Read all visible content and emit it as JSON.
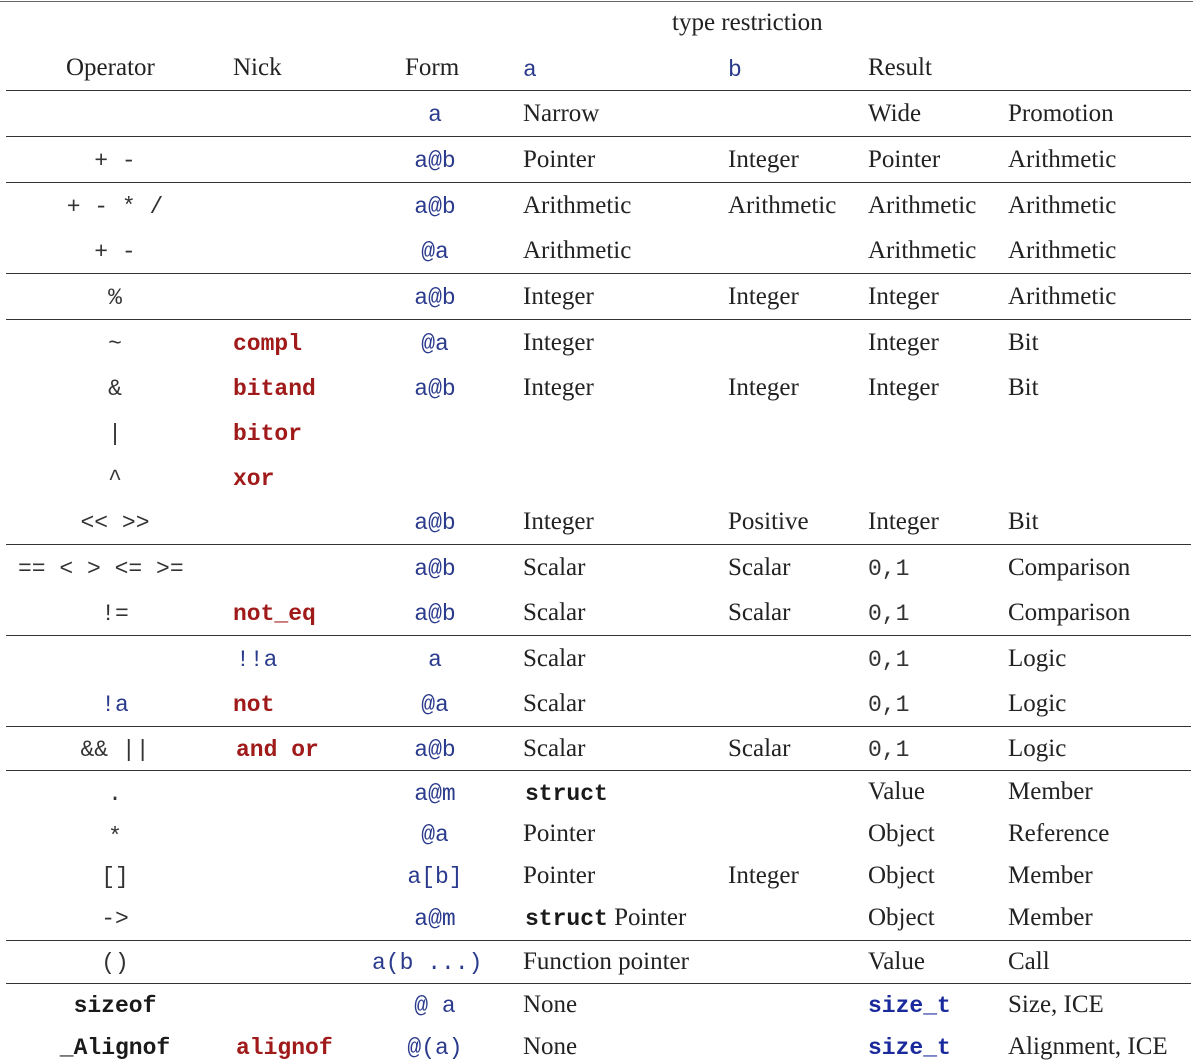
{
  "header": {
    "type_restriction": "type restriction",
    "operator": "Operator",
    "nick": "Nick",
    "form": "Form",
    "a": "a",
    "b": "b",
    "result": "Result"
  },
  "rows": [
    {
      "op": "",
      "nick": "",
      "form": "a",
      "a": "Narrow",
      "b": "",
      "result": "Wide",
      "kind": "Promotion"
    },
    {
      "op": "+ -",
      "nick": "",
      "form": "a@b",
      "a": "Pointer",
      "b": "Integer",
      "result": "Pointer",
      "kind": "Arithmetic"
    },
    {
      "op": "+ - * /",
      "nick": "",
      "form": "a@b",
      "a": "Arithmetic",
      "b": "Arithmetic",
      "result": "Arithmetic",
      "kind": "Arithmetic"
    },
    {
      "op": "+ -",
      "nick": "",
      "form": "@a",
      "a": "Arithmetic",
      "b": "",
      "result": "Arithmetic",
      "kind": "Arithmetic"
    },
    {
      "op": "%",
      "nick": "",
      "form": "a@b",
      "a": "Integer",
      "b": "Integer",
      "result": "Integer",
      "kind": "Arithmetic"
    },
    {
      "op": "~",
      "nick": "compl",
      "form": "@a",
      "a": "Integer",
      "b": "",
      "result": "Integer",
      "kind": "Bit"
    },
    {
      "op": "&",
      "nick": "bitand",
      "form": "a@b",
      "a": "Integer",
      "b": "Integer",
      "result": "Integer",
      "kind": "Bit"
    },
    {
      "op": "|",
      "nick": "bitor",
      "form": "",
      "a": "",
      "b": "",
      "result": "",
      "kind": ""
    },
    {
      "op": "^",
      "nick": "xor",
      "form": "",
      "a": "",
      "b": "",
      "result": "",
      "kind": ""
    },
    {
      "op": "<< >>",
      "nick": "",
      "form": "a@b",
      "a": "Integer",
      "b": "Positive",
      "result": "Integer",
      "kind": "Bit"
    },
    {
      "op": "== < > <= >=",
      "nick": "",
      "form": "a@b",
      "a": "Scalar",
      "b": "Scalar",
      "result": "0,1",
      "kind": "Comparison"
    },
    {
      "op": "!=",
      "nick": "not_eq",
      "form": "a@b",
      "a": "Scalar",
      "b": "Scalar",
      "result": "0,1",
      "kind": "Comparison"
    },
    {
      "op": "",
      "nick": "!!a",
      "form": "a",
      "a": "Scalar",
      "b": "",
      "result": "0,1",
      "kind": "Logic"
    },
    {
      "op": "!a",
      "nick": "not",
      "form": "@a",
      "a": "Scalar",
      "b": "",
      "result": "0,1",
      "kind": "Logic"
    },
    {
      "op": "&& ||",
      "nick": "and or",
      "form": "a@b",
      "a": "Scalar",
      "b": "Scalar",
      "result": "0,1",
      "kind": "Logic"
    },
    {
      "op": ".",
      "nick": "",
      "form": "a@m",
      "a": "struct",
      "b": "",
      "result": "Value",
      "kind": "Member"
    },
    {
      "op": "*",
      "nick": "",
      "form": "@a",
      "a": "Pointer",
      "b": "",
      "result": "Object",
      "kind": "Reference"
    },
    {
      "op": "[]",
      "nick": "",
      "form": "a[b]",
      "a": "Pointer",
      "b": "Integer",
      "result": "Object",
      "kind": "Member"
    },
    {
      "op": "->",
      "nick": "",
      "form": "a@m",
      "a_kw": "struct",
      "a": "Pointer",
      "b": "",
      "result": "Object",
      "kind": "Member"
    },
    {
      "op": "()",
      "nick": "",
      "form": "a(b ...)",
      "a": "Function pointer",
      "b": "",
      "result": "Value",
      "kind": "Call"
    },
    {
      "op": "sizeof",
      "nick": "",
      "form": "@ a",
      "a": "None",
      "b": "",
      "result": "size_t",
      "kind": "Size, ICE"
    },
    {
      "op": "_Alignof",
      "nick": "alignof",
      "form": "@(a)",
      "a": "None",
      "b": "",
      "result": "size_t",
      "kind": "Alignment, ICE"
    }
  ]
}
